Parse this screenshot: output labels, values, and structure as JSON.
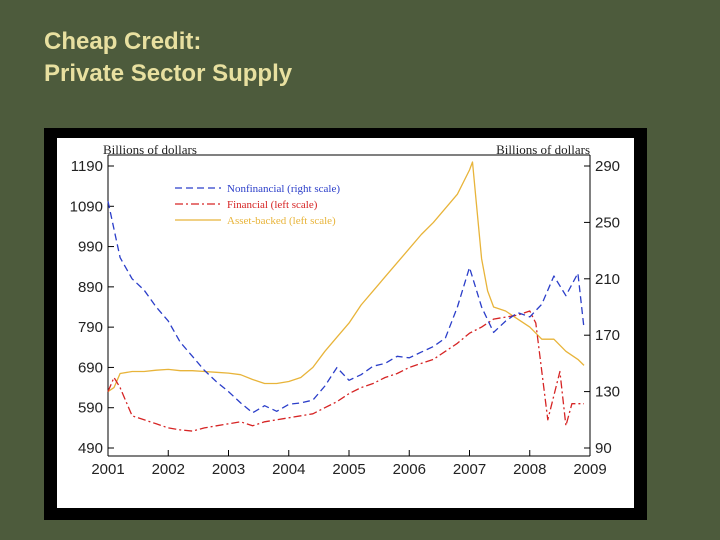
{
  "slide": {
    "title_line1": "Cheap Credit:",
    "title_line2": "Private Sector Supply"
  },
  "colors": {
    "background": "#4d5b3c",
    "title": "#e8e0a0",
    "nonfinancial": "#2b3ec9",
    "financial": "#d62424",
    "asset_backed": "#e8b43a"
  },
  "chart_data": {
    "type": "line",
    "title": "",
    "y_left_label": "Billions of dollars",
    "y_right_label": "Billions of dollars",
    "x_ticks": [
      "2001",
      "2002",
      "2003",
      "2004",
      "2005",
      "2006",
      "2007",
      "2008",
      "2009"
    ],
    "x_range": [
      2001,
      2009
    ],
    "y_left_range": [
      490,
      1190
    ],
    "y_left_ticks": [
      490,
      590,
      690,
      790,
      890,
      990,
      1090,
      1190
    ],
    "y_right_range": [
      90,
      290
    ],
    "y_right_ticks": [
      90,
      130,
      170,
      210,
      250,
      290
    ],
    "series": [
      {
        "name": "Nonfinancial (right scale)",
        "axis": "right",
        "style": "dashed",
        "x": [
          2001.0,
          2001.2,
          2001.4,
          2001.6,
          2001.8,
          2002.0,
          2002.2,
          2002.4,
          2002.6,
          2002.8,
          2003.0,
          2003.2,
          2003.4,
          2003.6,
          2003.8,
          2004.0,
          2004.2,
          2004.4,
          2004.6,
          2004.8,
          2005.0,
          2005.2,
          2005.4,
          2005.6,
          2005.8,
          2006.0,
          2006.2,
          2006.4,
          2006.6,
          2006.8,
          2007.0,
          2007.2,
          2007.4,
          2007.6,
          2007.8,
          2008.0,
          2008.2,
          2008.4,
          2008.6,
          2008.8,
          2008.9
        ],
        "values": [
          265,
          225,
          210,
          202,
          190,
          180,
          165,
          155,
          145,
          137,
          130,
          122,
          115,
          120,
          116,
          121,
          122,
          124,
          134,
          147,
          138,
          142,
          148,
          150,
          155,
          154,
          158,
          162,
          168,
          190,
          218,
          190,
          172,
          180,
          186,
          183,
          192,
          212,
          198,
          214,
          175
        ]
      },
      {
        "name": "Financial (left scale)",
        "axis": "left",
        "style": "dashdot",
        "x": [
          2001.0,
          2001.1,
          2001.2,
          2001.4,
          2001.6,
          2001.8,
          2002.0,
          2002.2,
          2002.4,
          2002.6,
          2002.8,
          2003.0,
          2003.2,
          2003.4,
          2003.6,
          2003.8,
          2004.0,
          2004.2,
          2004.4,
          2004.6,
          2004.8,
          2005.0,
          2005.2,
          2005.4,
          2005.6,
          2005.8,
          2006.0,
          2006.2,
          2006.4,
          2006.6,
          2006.8,
          2007.0,
          2007.2,
          2007.4,
          2007.6,
          2007.8,
          2008.0,
          2008.1,
          2008.2,
          2008.3,
          2008.5,
          2008.6,
          2008.7,
          2008.9
        ],
        "values": [
          630,
          665,
          640,
          570,
          560,
          550,
          540,
          535,
          532,
          540,
          545,
          550,
          555,
          545,
          555,
          560,
          565,
          570,
          575,
          590,
          605,
          625,
          640,
          650,
          665,
          675,
          690,
          700,
          710,
          730,
          750,
          775,
          790,
          810,
          815,
          820,
          830,
          800,
          680,
          560,
          680,
          545,
          600,
          600
        ]
      },
      {
        "name": "Asset-backed (left scale)",
        "axis": "left",
        "style": "solid",
        "x": [
          2001.0,
          2001.1,
          2001.2,
          2001.4,
          2001.6,
          2001.8,
          2002.0,
          2002.2,
          2002.4,
          2002.6,
          2002.8,
          2003.0,
          2003.2,
          2003.4,
          2003.6,
          2003.8,
          2004.0,
          2004.2,
          2004.4,
          2004.6,
          2004.8,
          2005.0,
          2005.2,
          2005.4,
          2005.6,
          2005.8,
          2006.0,
          2006.2,
          2006.4,
          2006.6,
          2006.8,
          2007.0,
          2007.05,
          2007.1,
          2007.2,
          2007.3,
          2007.4,
          2007.6,
          2007.8,
          2008.0,
          2008.2,
          2008.4,
          2008.6,
          2008.8,
          2008.9
        ],
        "values": [
          630,
          640,
          675,
          680,
          680,
          683,
          685,
          682,
          682,
          680,
          678,
          676,
          672,
          660,
          650,
          650,
          655,
          665,
          690,
          730,
          765,
          800,
          845,
          880,
          915,
          950,
          985,
          1020,
          1050,
          1085,
          1120,
          1180,
          1200,
          1120,
          960,
          880,
          840,
          830,
          810,
          790,
          760,
          760,
          730,
          710,
          695
        ]
      }
    ],
    "legend_position": "top-left"
  }
}
